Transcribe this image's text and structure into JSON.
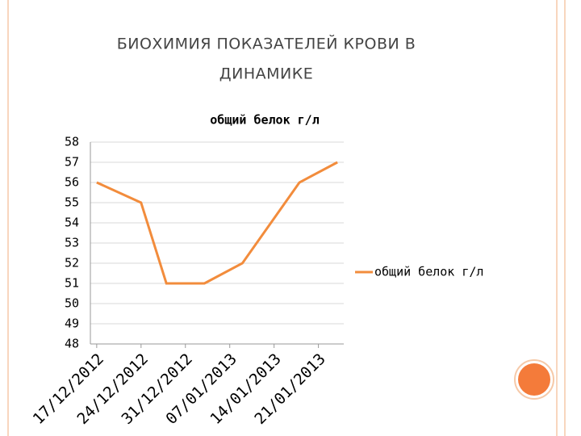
{
  "slide": {
    "title_lines": [
      "БИОХИМИЯ ПОКАЗАТЕЛЕЙ КРОВИ В",
      "ДИНАМИКЕ"
    ]
  },
  "chart_data": {
    "type": "line",
    "title": "общий белок г/л",
    "x": [
      "17/12/2012",
      "24/12/2012",
      "28/12/2012",
      "03/01/2013",
      "09/01/2013",
      "18/01/2013",
      "24/01/2013"
    ],
    "series": [
      {
        "name": "общий белок г/л",
        "color": "#f28c3c",
        "values": [
          56,
          55,
          51,
          51,
          52,
          56,
          57
        ]
      }
    ],
    "xlim": [
      "16/12/2012",
      "25/01/2013"
    ],
    "xticks": [
      "17/12/2012",
      "24/12/2012",
      "31/12/2012",
      "07/01/2013",
      "14/01/2013",
      "21/01/2013"
    ],
    "ylim": [
      48,
      58
    ],
    "yticks": [
      48,
      49,
      50,
      51,
      52,
      53,
      54,
      55,
      56,
      57,
      58
    ],
    "grid": true,
    "legend": "right"
  }
}
